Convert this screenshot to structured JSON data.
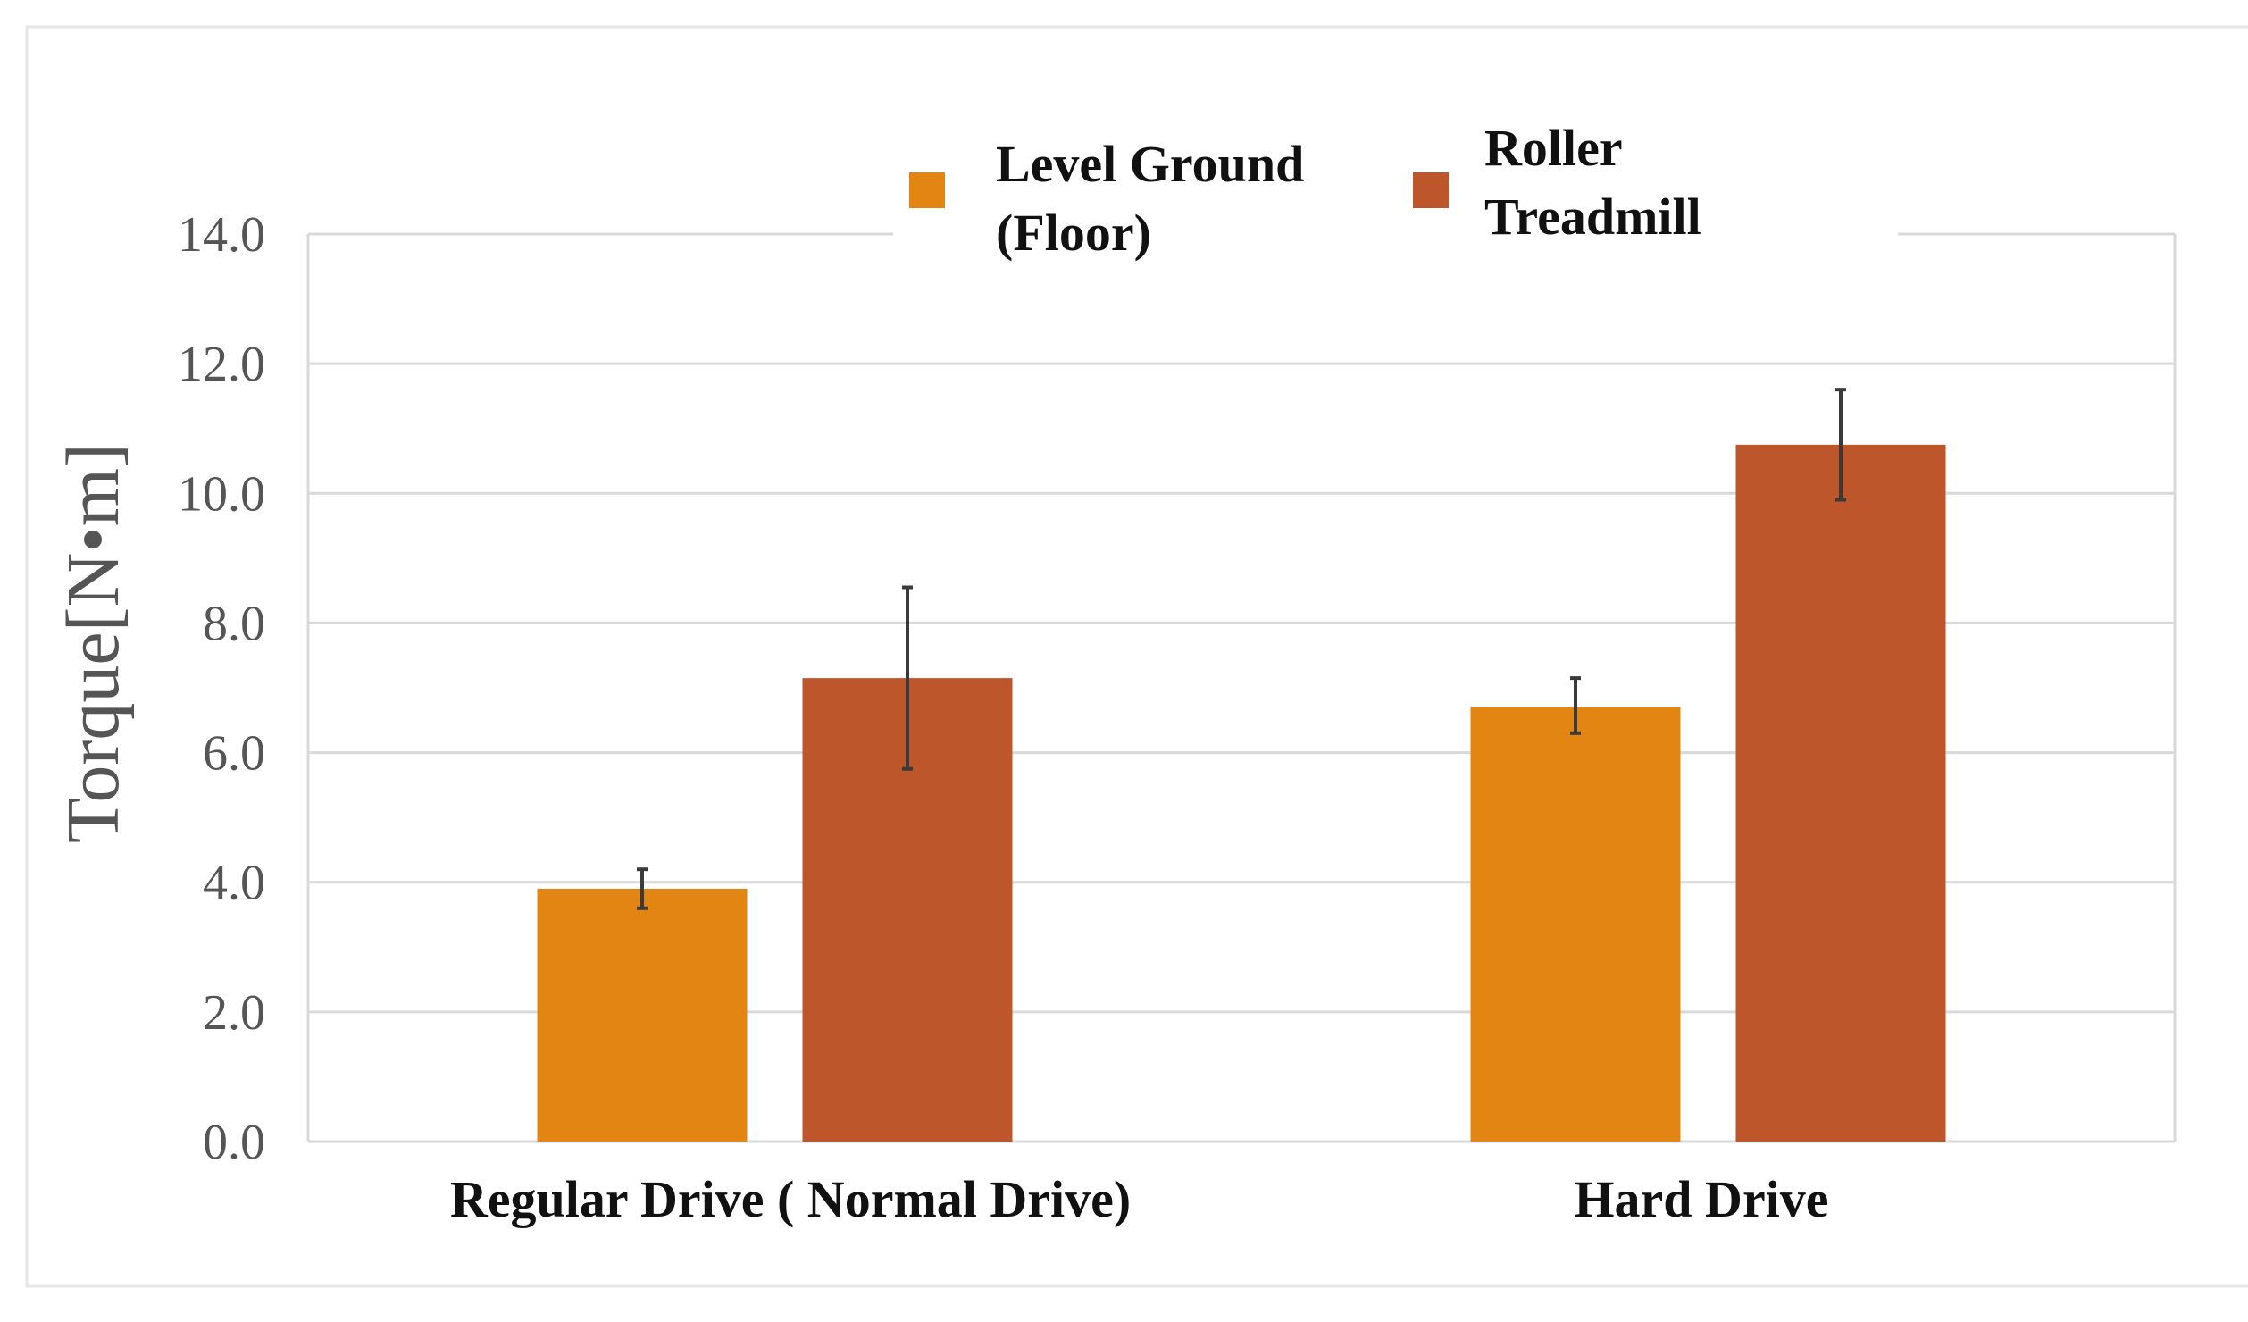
{
  "chart_data": {
    "type": "bar",
    "title": "",
    "xlabel": "",
    "ylabel": "Torque[N•m]",
    "ylim": [
      0,
      14
    ],
    "yticks": [
      0,
      2,
      4,
      6,
      8,
      10,
      12,
      14
    ],
    "ytick_labels": [
      "0.0",
      "2.0",
      "4.0",
      "6.0",
      "8.0",
      "10.0",
      "12.0",
      "14.0"
    ],
    "grid": true,
    "legend_position": "top",
    "categories": [
      "Regular Drive ( Normal Drive)",
      "Hard Drive"
    ],
    "series": [
      {
        "name": "Level Ground (Floor)",
        "legend_lines": [
          "Level Ground",
          "(Floor)"
        ],
        "color": "#E38513",
        "values": [
          3.9,
          6.7
        ],
        "error_low": [
          0.3,
          0.4
        ],
        "error_high": [
          0.3,
          0.45
        ]
      },
      {
        "name": "Roller Treadmill",
        "legend_lines": [
          "Roller",
          "Treadmill"
        ],
        "color": "#BD572B",
        "values": [
          7.15,
          10.75
        ],
        "error_low": [
          1.4,
          0.85
        ],
        "error_high": [
          1.4,
          0.85
        ]
      }
    ]
  },
  "colors": {
    "grid": "#D9D9D9",
    "axis": "#D9D9D9",
    "text": "#111111",
    "tick_text": "#555555",
    "ylabel_text": "#555555",
    "errorbar": "#3a3a3a",
    "frame": "#e6e6e6"
  }
}
